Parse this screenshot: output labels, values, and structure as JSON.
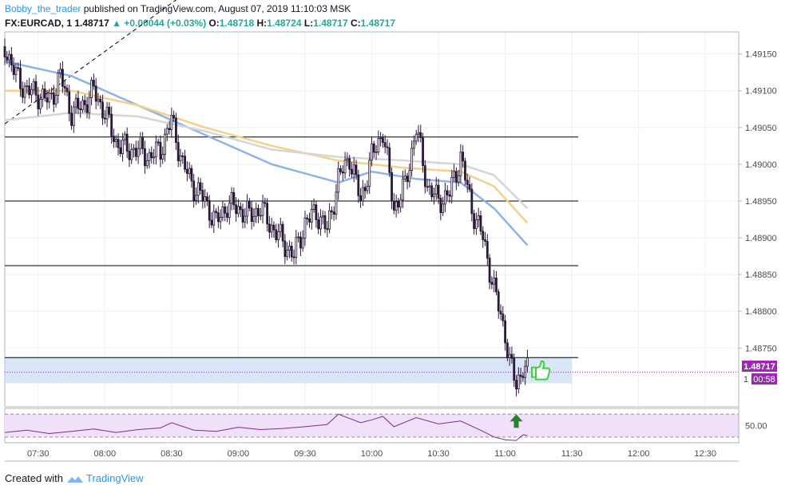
{
  "header": {
    "author": "Bobby_the_trader",
    "published_text": "published on TradingView.com, August 07, 2019 11:10:03 MSK",
    "symbol": "FX:EURCAD, 1",
    "last": "1.48717",
    "change": "+0.00044 (+0.03%)",
    "o_label": "O:",
    "o_value": "1.48718",
    "h_label": "H:",
    "h_value": "1.48724",
    "l_label": "L:",
    "l_value": "1.48717",
    "c_label": "C:",
    "c_value": "1.48717"
  },
  "price_tag": {
    "price": "1.48717",
    "countdown": "00:58",
    "partial_label": "1"
  },
  "footer": {
    "created_with": "Created with",
    "brand": "TradingView"
  },
  "colors": {
    "candle_up": "#ffffff",
    "candle_down": "#2a1838",
    "wick": "#2a1838",
    "ma_fast": "#8fb3e8",
    "ma_mid": "#f2d18c",
    "ma_slow": "#d6d6d6",
    "rsi_line": "#7b2d8e",
    "rsi_band": "#f0e0fa",
    "zone_fill": "#c9dcf5",
    "price_line": "#9c27b0",
    "arrow_green": "#2e7d32",
    "thumb_green": "#39d23a"
  },
  "icons": [
    "up-triangle-icon",
    "arrow-up-icon",
    "thumbs-up-icon",
    "tradingview-logo-icon"
  ],
  "chart_data": {
    "type": "candlestick",
    "timeframe": "1",
    "y_ticks": [
      "1.49150",
      "1.49100",
      "1.49050",
      "1.49000",
      "1.48950",
      "1.48900",
      "1.48850",
      "1.48800",
      "1.48750"
    ],
    "x_ticks": [
      "07:30",
      "08:00",
      "08:30",
      "09:00",
      "09:30",
      "10:00",
      "10:30",
      "11:00",
      "11:30",
      "12:00",
      "12:30"
    ],
    "ylim": [
      1.4867,
      1.4918
    ],
    "x_range": [
      "07:15",
      "12:45"
    ],
    "horizontal_levels": [
      1.49037,
      1.4895,
      1.48862,
      1.48737
    ],
    "support_zone": [
      1.48702,
      1.48737
    ],
    "trend_line": {
      "from": [
        "07:15",
        1.49055
      ],
      "to": [
        "08:35",
        1.4923
      ]
    },
    "candles_path": [
      [
        "07:15",
        1.4916
      ],
      [
        "07:20",
        1.4912
      ],
      [
        "07:25",
        1.491
      ],
      [
        "07:30",
        1.49095
      ],
      [
        "07:35",
        1.49085
      ],
      [
        "07:40",
        1.4912
      ],
      [
        "07:45",
        1.4907
      ],
      [
        "07:50",
        1.4908
      ],
      [
        "07:55",
        1.491
      ],
      [
        "08:00",
        1.4907
      ],
      [
        "08:05",
        1.4903
      ],
      [
        "08:10",
        1.4902
      ],
      [
        "08:15",
        1.4902
      ],
      [
        "08:20",
        1.4901
      ],
      [
        "08:25",
        1.4902
      ],
      [
        "08:30",
        1.4906
      ],
      [
        "08:35",
        1.49
      ],
      [
        "08:40",
        1.4897
      ],
      [
        "08:45",
        1.4895
      ],
      [
        "08:50",
        1.4892
      ],
      [
        "08:55",
        1.48945
      ],
      [
        "09:00",
        1.4894
      ],
      [
        "09:05",
        1.4893
      ],
      [
        "09:10",
        1.4894
      ],
      [
        "09:15",
        1.48915
      ],
      [
        "09:20",
        1.48895
      ],
      [
        "09:25",
        1.48875
      ],
      [
        "09:30",
        1.4892
      ],
      [
        "09:35",
        1.48935
      ],
      [
        "09:40",
        1.4891
      ],
      [
        "09:45",
        1.4898
      ],
      [
        "09:50",
        1.4901
      ],
      [
        "09:55",
        1.4895
      ],
      [
        "10:00",
        1.4901
      ],
      [
        "10:05",
        1.49045
      ],
      [
        "10:10",
        1.4894
      ],
      [
        "10:15",
        1.4897
      ],
      [
        "10:20",
        1.4905
      ],
      [
        "10:25",
        1.4897
      ],
      [
        "10:30",
        1.4895
      ],
      [
        "10:35",
        1.4896
      ],
      [
        "10:40",
        1.4901
      ],
      [
        "10:45",
        1.4894
      ],
      [
        "10:50",
        1.489
      ],
      [
        "10:55",
        1.4883
      ],
      [
        "11:00",
        1.4877
      ],
      [
        "11:02",
        1.4873
      ],
      [
        "11:05",
        1.487
      ],
      [
        "11:08",
        1.48725
      ],
      [
        "11:10",
        1.48717
      ]
    ],
    "moving_averages": [
      {
        "name": "fast",
        "color": "#8fb3e8",
        "points": [
          [
            "07:15",
            1.4914
          ],
          [
            "07:45",
            1.4912
          ],
          [
            "08:15",
            1.4908
          ],
          [
            "08:45",
            1.4904
          ],
          [
            "09:15",
            1.49
          ],
          [
            "09:45",
            1.48975
          ],
          [
            "10:00",
            1.4899
          ],
          [
            "10:20",
            1.4898
          ],
          [
            "10:40",
            1.48975
          ],
          [
            "10:55",
            1.4894
          ],
          [
            "11:10",
            1.4889
          ]
        ]
      },
      {
        "name": "mid",
        "color": "#f2d18c",
        "points": [
          [
            "07:15",
            1.491
          ],
          [
            "07:45",
            1.491
          ],
          [
            "08:15",
            1.4908
          ],
          [
            "08:45",
            1.4905
          ],
          [
            "09:15",
            1.49025
          ],
          [
            "09:45",
            1.49005
          ],
          [
            "10:15",
            1.48995
          ],
          [
            "10:40",
            1.4899
          ],
          [
            "10:55",
            1.4897
          ],
          [
            "11:10",
            1.4892
          ]
        ]
      },
      {
        "name": "slow",
        "color": "#d6d6d6",
        "points": [
          [
            "07:15",
            1.4906
          ],
          [
            "07:45",
            1.4907
          ],
          [
            "08:15",
            1.49065
          ],
          [
            "08:45",
            1.49045
          ],
          [
            "09:15",
            1.4902
          ],
          [
            "09:45",
            1.4901
          ],
          [
            "10:15",
            1.49005
          ],
          [
            "10:40",
            1.49
          ],
          [
            "10:55",
            1.48985
          ],
          [
            "11:10",
            1.4894
          ]
        ]
      }
    ],
    "rsi": {
      "y_tick": "50.00",
      "upper_band": 70,
      "lower_band": 30,
      "ylim": [
        20,
        80
      ],
      "points": [
        [
          "07:15",
          38
        ],
        [
          "07:25",
          42
        ],
        [
          "07:35",
          36
        ],
        [
          "07:45",
          40
        ],
        [
          "07:55",
          44
        ],
        [
          "08:05",
          38
        ],
        [
          "08:15",
          43
        ],
        [
          "08:25",
          46
        ],
        [
          "08:30",
          55
        ],
        [
          "08:40",
          42
        ],
        [
          "08:50",
          40
        ],
        [
          "09:00",
          47
        ],
        [
          "09:10",
          43
        ],
        [
          "09:20",
          45
        ],
        [
          "09:30",
          48
        ],
        [
          "09:40",
          52
        ],
        [
          "09:45",
          70
        ],
        [
          "09:55",
          55
        ],
        [
          "10:00",
          60
        ],
        [
          "10:05",
          66
        ],
        [
          "10:10",
          48
        ],
        [
          "10:20",
          64
        ],
        [
          "10:30",
          53
        ],
        [
          "10:40",
          58
        ],
        [
          "10:50",
          40
        ],
        [
          "10:55",
          30
        ],
        [
          "11:00",
          25
        ],
        [
          "11:05",
          24
        ],
        [
          "11:08",
          34
        ],
        [
          "11:10",
          33
        ]
      ]
    }
  }
}
